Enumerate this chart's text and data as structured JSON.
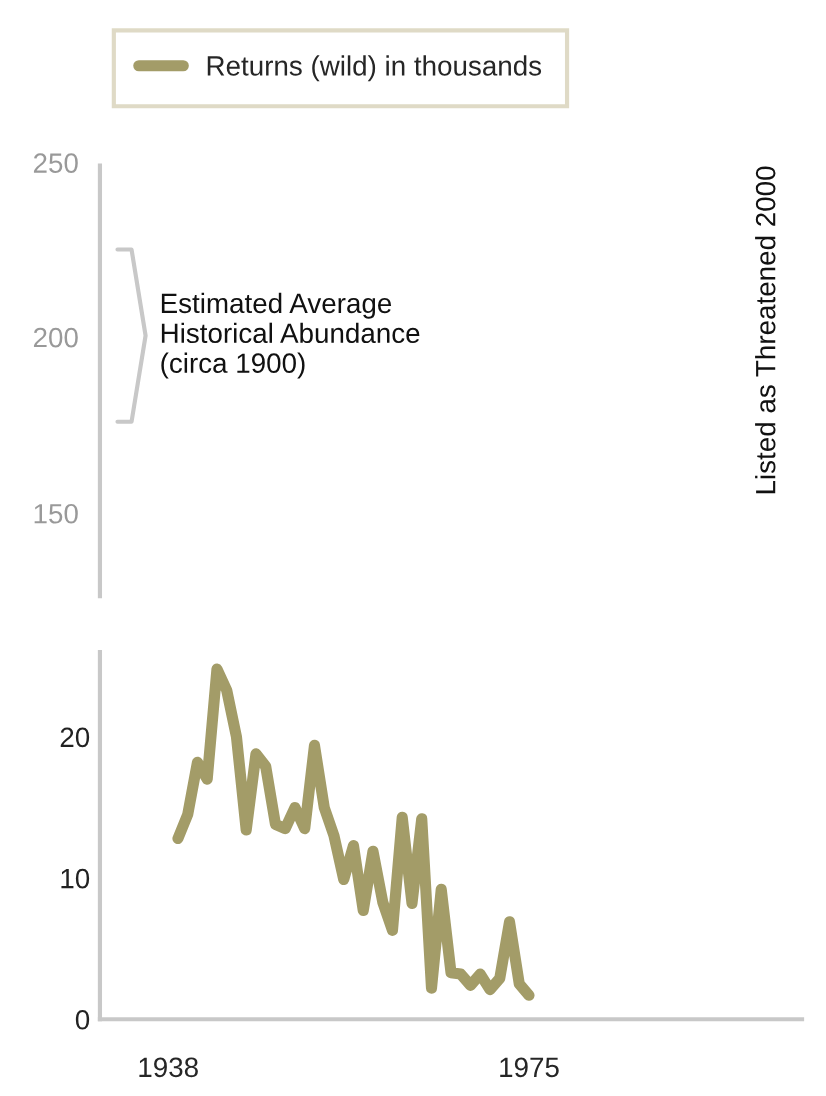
{
  "chart_data": [
    {
      "type": "other",
      "annotations": [
        "250",
        "200",
        "150",
        "Estimated Average\nHistorical Abundance\n(circa 1900)",
        "Listed as Threatened 2000"
      ]
    },
    {
      "type": "line",
      "xlim": [
        1931,
        2003
      ],
      "ylim": [
        0,
        26
      ],
      "yticks": [
        0,
        10,
        20
      ],
      "xticks": [
        1938,
        1975
      ],
      "grid": false,
      "legend": "top",
      "marker": "none",
      "line_style": "solid",
      "x": [
        1939,
        1940,
        1941,
        1942,
        1943,
        1944,
        1945,
        1946,
        1947,
        1948,
        1949,
        1950,
        1951,
        1952,
        1953,
        1954,
        1955,
        1956,
        1957,
        1958,
        1959,
        1960,
        1961,
        1962,
        1963,
        1964,
        1965,
        1966,
        1967,
        1968,
        1969,
        1970,
        1971,
        1972,
        1973,
        1974,
        1975
      ],
      "series": [
        {
          "name": "Returns (wild) in thousands",
          "color": "#a39c68",
          "values": [
            12.8,
            14.5,
            18.2,
            17.0,
            24.8,
            23.3,
            20.0,
            13.4,
            18.8,
            17.9,
            13.8,
            13.5,
            15.0,
            13.5,
            19.4,
            15.0,
            13.0,
            9.9,
            12.3,
            7.7,
            11.9,
            8.3,
            6.3,
            14.3,
            8.2,
            14.2,
            2.2,
            9.2,
            3.3,
            3.2,
            2.4,
            3.2,
            2.1,
            2.9,
            6.9,
            2.5,
            1.7
          ]
        }
      ]
    }
  ]
}
